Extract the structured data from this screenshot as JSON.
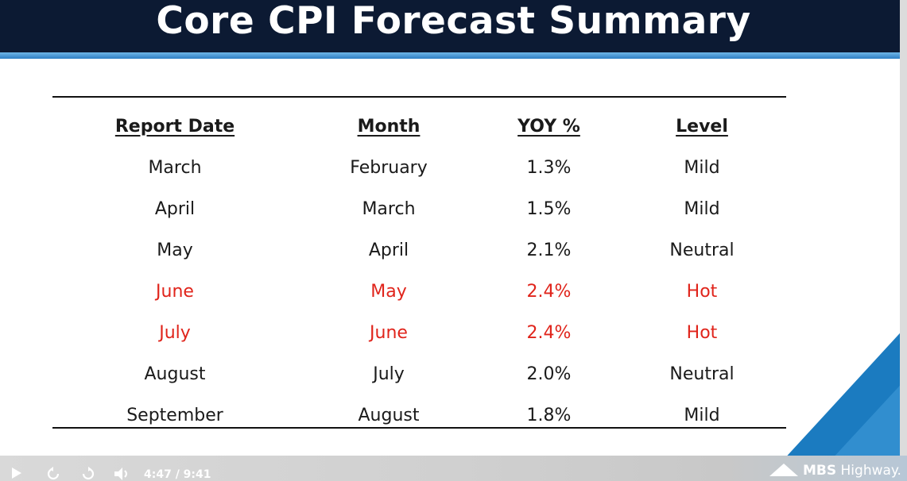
{
  "slide": {
    "title": "Core CPI Forecast Summary",
    "table": {
      "headers": [
        "Report Date",
        "Month",
        "YOY %",
        "Level"
      ],
      "rows": [
        [
          "March",
          "February",
          "1.3%",
          "Mild"
        ],
        [
          "April",
          "March",
          "1.5%",
          "Mild"
        ],
        [
          "May",
          "April",
          "2.1%",
          "Neutral"
        ],
        [
          "June",
          "May",
          "2.4%",
          "Hot"
        ],
        [
          "July",
          "June",
          "2.4%",
          "Hot"
        ],
        [
          "August",
          "July",
          "2.0%",
          "Neutral"
        ],
        [
          "September",
          "August",
          "1.8%",
          "Mild"
        ]
      ]
    },
    "brand_bold": "MBS",
    "brand_rest": " Highway."
  },
  "player": {
    "time": "4:47 / 9:41",
    "play_icon": "play-icon",
    "replay_icon": "replay-icon",
    "forward_icon": "forward-icon",
    "volume_icon": "volume-icon"
  },
  "colors": {
    "header_bg": "#0c1a33",
    "accent_blue": "#1b7bc0",
    "hot_red": "#e0241b"
  }
}
